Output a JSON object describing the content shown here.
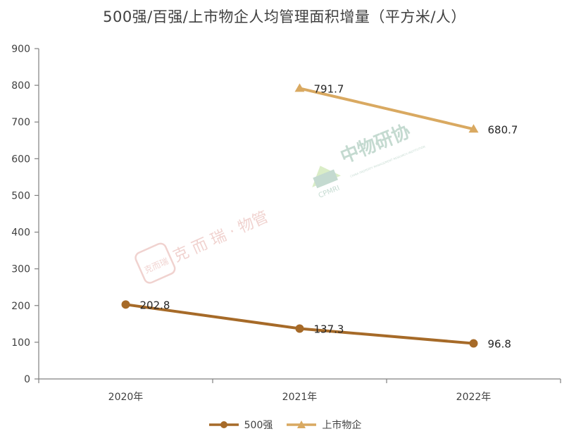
{
  "chart_data": {
    "type": "line",
    "title": "500强/百强/上市物企人均管理面积增量（平方米/人）",
    "categories": [
      "2020年",
      "2021年",
      "2022年"
    ],
    "ylim": [
      0,
      900
    ],
    "yticks": [
      0,
      100,
      200,
      300,
      400,
      500,
      600,
      700,
      800,
      900
    ],
    "grid": false,
    "legend_position": "bottom",
    "series": [
      {
        "name": "500强",
        "values": [
          202.8,
          137.3,
          96.8
        ],
        "labels": [
          "202.8",
          "137.3",
          "96.8"
        ],
        "color": "#A66A28",
        "marker": "circle"
      },
      {
        "name": "上市物企",
        "values": [
          null,
          791.7,
          680.7
        ],
        "labels": [
          "",
          "791.7",
          "680.7"
        ],
        "color": "#D9A961",
        "marker": "triangle"
      }
    ]
  },
  "watermarks": {
    "left_seal": "克而瑞",
    "left_text": "克 而 瑞 · 物管",
    "right_brand": "中物研协",
    "right_abbr": "CPMRI",
    "right_sub": "CHINA PROPERTY MANAGEMENT RESEARCH INSTITUTION"
  }
}
